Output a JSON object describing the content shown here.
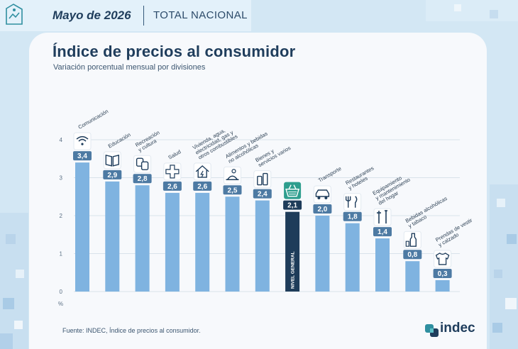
{
  "header": {
    "date": "Mayo de 2026",
    "scope": "TOTAL NACIONAL"
  },
  "footer": {
    "source": "Fuente: INDEC, Índice de precios al consumidor.",
    "brand": "indec"
  },
  "colors": {
    "bar": "#7fb3e0",
    "bar_highlight": "#1e3c5a",
    "label_bg": "#4d7aa3",
    "label_bg_highlight": "#1e3c5a",
    "icon_bg_highlight": "#2e9e8e",
    "grid": "#d9e2ea",
    "text": "#1f3d5c"
  },
  "chart_data": {
    "type": "bar",
    "title": "Índice de precios al consumidor",
    "subtitle": "Variación porcentual mensual por divisiones",
    "ylabel": "%",
    "ylim": [
      0,
      4
    ],
    "yticks": [
      "0",
      "1",
      "2",
      "3",
      "4"
    ],
    "grid": true,
    "categories": [
      {
        "name": "Comunicación",
        "value": 3.4,
        "label": "3,4",
        "icon": "wifi-icon"
      },
      {
        "name": "Educación",
        "value": 2.9,
        "label": "2,9",
        "icon": "book-icon"
      },
      {
        "name": "Recreación y cultura",
        "value": 2.8,
        "label": "2,8",
        "icon": "theater-masks-icon"
      },
      {
        "name": "Salud",
        "value": 2.6,
        "label": "2,6",
        "icon": "health-cross-icon"
      },
      {
        "name": "Vivienda, agua, electricidad, gas y otros combustibles",
        "value": 2.6,
        "label": "2,6",
        "icon": "house-energy-icon"
      },
      {
        "name": "Alimentos y bebidas no alcohólicas",
        "value": 2.5,
        "label": "2,5",
        "icon": "food-icon"
      },
      {
        "name": "Bienes y servicios varios",
        "value": 2.4,
        "label": "2,4",
        "icon": "toiletries-icon"
      },
      {
        "name": "NIVEL GENERAL",
        "value": 2.1,
        "label": "2,1",
        "icon": "shopping-basket-icon",
        "highlight": true
      },
      {
        "name": "Transporte",
        "value": 2.0,
        "label": "2,0",
        "icon": "car-icon"
      },
      {
        "name": "Restaurantes y hoteles",
        "value": 1.8,
        "label": "1,8",
        "icon": "cutlery-icon"
      },
      {
        "name": "Equipamiento y mantenimiento del hogar",
        "value": 1.4,
        "label": "1,4",
        "icon": "tools-icon"
      },
      {
        "name": "Bebidas alcohólicas y tabaco",
        "value": 0.8,
        "label": "0,8",
        "icon": "bottle-icon"
      },
      {
        "name": "Prendas de vestir y calzado",
        "value": 0.3,
        "label": "0,3",
        "icon": "shirt-icon"
      }
    ]
  }
}
